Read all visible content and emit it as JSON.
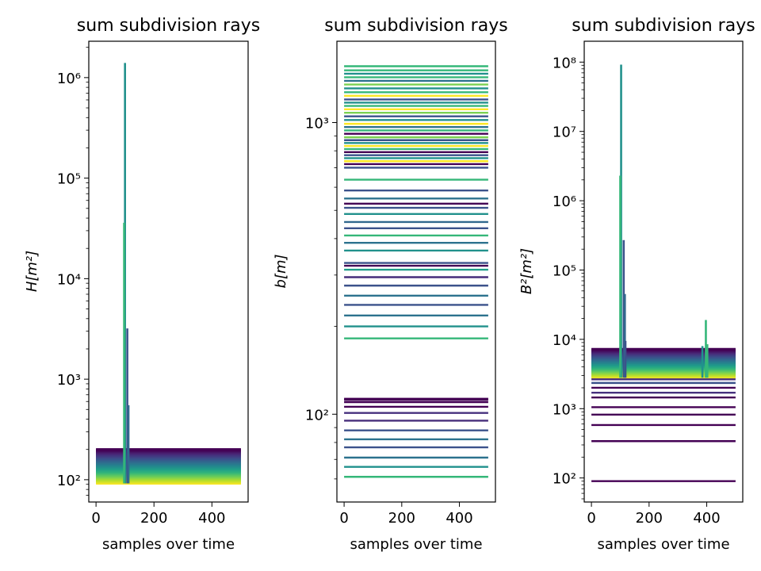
{
  "figure": {
    "panels": [
      {
        "title": "sum subdivision rays",
        "xlabel": "samples over time",
        "ylabel": "H[m²]"
      },
      {
        "title": "sum subdivision rays",
        "xlabel": "samples over time",
        "ylabel": "b[m]"
      },
      {
        "title": "sum subdivision rays",
        "xlabel": "samples over time",
        "ylabel": "B²[m²]"
      }
    ]
  },
  "chart_data": [
    {
      "type": "line",
      "title": "sum subdivision rays",
      "xlabel": "samples over time",
      "ylabel": "H[m²]",
      "xlim": [
        -25,
        525
      ],
      "ylim": [
        60,
        2300000
      ],
      "yscale": "log",
      "x_ticks": [
        0,
        200,
        400
      ],
      "y_ticks": [
        {
          "value": 100,
          "label": "10²"
        },
        {
          "value": 1000,
          "label": "10³"
        },
        {
          "value": 10000,
          "label": "10⁴"
        },
        {
          "value": 100000,
          "label": "10⁵"
        },
        {
          "value": 1000000,
          "label": "10⁶"
        }
      ],
      "colormap": "viridis",
      "band": {
        "x": [
          0,
          500
        ],
        "y_min": 92,
        "y_max": 200,
        "line_count": 80
      },
      "spikes": [
        {
          "x": 100,
          "peak": 1400000,
          "color": "#21918c"
        },
        {
          "x": 97,
          "peak": 36000,
          "color": "#35b779"
        },
        {
          "x": 108,
          "peak": 3200,
          "color": "#3b528b"
        },
        {
          "x": 112,
          "peak": 550,
          "color": "#31688e"
        }
      ]
    },
    {
      "type": "line",
      "title": "sum subdivision rays",
      "xlabel": "samples over time",
      "ylabel": "b[m]",
      "xlim": [
        -25,
        525
      ],
      "ylim": [
        50,
        1900
      ],
      "yscale": "log",
      "x_ticks": [
        0,
        200,
        400
      ],
      "y_ticks": [
        {
          "value": 100,
          "label": "10²"
        },
        {
          "value": 1000,
          "label": "10³"
        }
      ],
      "colormap": "viridis",
      "x_range": [
        0,
        500
      ],
      "lines": [
        {
          "y": 61,
          "color": "#35b779"
        },
        {
          "y": 66,
          "color": "#21918c"
        },
        {
          "y": 71,
          "color": "#2c728e"
        },
        {
          "y": 77,
          "color": "#3b528b"
        },
        {
          "y": 82,
          "color": "#2c728e"
        },
        {
          "y": 88,
          "color": "#3b528b"
        },
        {
          "y": 95,
          "color": "#472d7b"
        },
        {
          "y": 101,
          "color": "#46307e"
        },
        {
          "y": 106,
          "color": "#440154"
        },
        {
          "y": 110,
          "color": "#440154"
        },
        {
          "y": 112,
          "color": "#440154"
        },
        {
          "y": 113,
          "color": "#440154"
        },
        {
          "y": 182,
          "color": "#35b779"
        },
        {
          "y": 200,
          "color": "#21918c"
        },
        {
          "y": 218,
          "color": "#2c728e"
        },
        {
          "y": 237,
          "color": "#3b528b"
        },
        {
          "y": 255,
          "color": "#2c728e"
        },
        {
          "y": 276,
          "color": "#3b528b"
        },
        {
          "y": 295,
          "color": "#472d7b"
        },
        {
          "y": 313,
          "color": "#1f9e89"
        },
        {
          "y": 323,
          "color": "#440154"
        },
        {
          "y": 330,
          "color": "#3b528b"
        },
        {
          "y": 364,
          "color": "#21918c"
        },
        {
          "y": 387,
          "color": "#2c728e"
        },
        {
          "y": 410,
          "color": "#35b779"
        },
        {
          "y": 434,
          "color": "#3b528b"
        },
        {
          "y": 456,
          "color": "#31688e"
        },
        {
          "y": 486,
          "color": "#21918c"
        },
        {
          "y": 510,
          "color": "#3b528b"
        },
        {
          "y": 527,
          "color": "#440154"
        },
        {
          "y": 549,
          "color": "#2c728e"
        },
        {
          "y": 585,
          "color": "#3b528b"
        },
        {
          "y": 637,
          "color": "#35b779"
        },
        {
          "y": 700,
          "color": "#3b528b"
        },
        {
          "y": 720,
          "color": "#440154"
        },
        {
          "y": 737,
          "color": "#fde725"
        },
        {
          "y": 755,
          "color": "#21918c"
        },
        {
          "y": 773,
          "color": "#3b528b"
        },
        {
          "y": 792,
          "color": "#440154"
        },
        {
          "y": 811,
          "color": "#35b779"
        },
        {
          "y": 831,
          "color": "#fde725"
        },
        {
          "y": 851,
          "color": "#21918c"
        },
        {
          "y": 870,
          "color": "#3b528b"
        },
        {
          "y": 890,
          "color": "#7ad151"
        },
        {
          "y": 915,
          "color": "#440154"
        },
        {
          "y": 940,
          "color": "#35b779"
        },
        {
          "y": 965,
          "color": "#2c728e"
        },
        {
          "y": 990,
          "color": "#fde725"
        },
        {
          "y": 1020,
          "color": "#21918c"
        },
        {
          "y": 1050,
          "color": "#3b528b"
        },
        {
          "y": 1080,
          "color": "#7ad151"
        },
        {
          "y": 1110,
          "color": "#fde725"
        },
        {
          "y": 1140,
          "color": "#35b779"
        },
        {
          "y": 1170,
          "color": "#21918c"
        },
        {
          "y": 1200,
          "color": "#3b528b"
        },
        {
          "y": 1235,
          "color": "#fde725"
        },
        {
          "y": 1270,
          "color": "#35b779"
        },
        {
          "y": 1310,
          "color": "#21918c"
        },
        {
          "y": 1350,
          "color": "#7ad151"
        },
        {
          "y": 1390,
          "color": "#2c728e"
        },
        {
          "y": 1430,
          "color": "#35b779"
        },
        {
          "y": 1470,
          "color": "#21918c"
        },
        {
          "y": 1510,
          "color": "#35b779"
        },
        {
          "y": 1560,
          "color": "#35b779"
        }
      ]
    },
    {
      "type": "line",
      "title": "sum subdivision rays",
      "xlabel": "samples over time",
      "ylabel": "B²[m²]",
      "xlim": [
        -25,
        525
      ],
      "ylim": [
        45,
        200000000
      ],
      "yscale": "log",
      "x_ticks": [
        0,
        200,
        400
      ],
      "y_ticks": [
        {
          "value": 100,
          "label": "10²"
        },
        {
          "value": 1000,
          "label": "10³"
        },
        {
          "value": 10000,
          "label": "10⁴"
        },
        {
          "value": 100000,
          "label": "10⁵"
        },
        {
          "value": 1000000,
          "label": "10⁶"
        },
        {
          "value": 10000000,
          "label": "10⁷"
        },
        {
          "value": 100000000,
          "label": "10⁸"
        }
      ],
      "colormap": "viridis",
      "band": {
        "x": [
          0,
          500
        ],
        "y_min": 2800,
        "y_max": 7200,
        "line_count": 60
      },
      "lines": [
        {
          "y": 90,
          "color": "#440154"
        },
        {
          "y": 340,
          "color": "#440154"
        },
        {
          "y": 580,
          "color": "#440154"
        },
        {
          "y": 820,
          "color": "#440154"
        },
        {
          "y": 1050,
          "color": "#440154"
        },
        {
          "y": 1450,
          "color": "#440154"
        },
        {
          "y": 1700,
          "color": "#46307e"
        },
        {
          "y": 2000,
          "color": "#440154"
        },
        {
          "y": 2350,
          "color": "#3b528b"
        },
        {
          "y": 2650,
          "color": "#472d7b"
        }
      ],
      "spikes": [
        {
          "x": 103,
          "peak": 92000000,
          "color": "#21918c"
        },
        {
          "x": 100,
          "peak": 2300000,
          "color": "#35b779"
        },
        {
          "x": 112,
          "peak": 270000,
          "color": "#3b528b"
        },
        {
          "x": 116,
          "peak": 45000,
          "color": "#31688e"
        },
        {
          "x": 118,
          "peak": 9500,
          "color": "#3b528b"
        },
        {
          "x": 397,
          "peak": 19000,
          "color": "#35b779"
        },
        {
          "x": 385,
          "peak": 8000,
          "color": "#21918c"
        },
        {
          "x": 402,
          "peak": 8500,
          "color": "#35b779"
        }
      ]
    }
  ]
}
